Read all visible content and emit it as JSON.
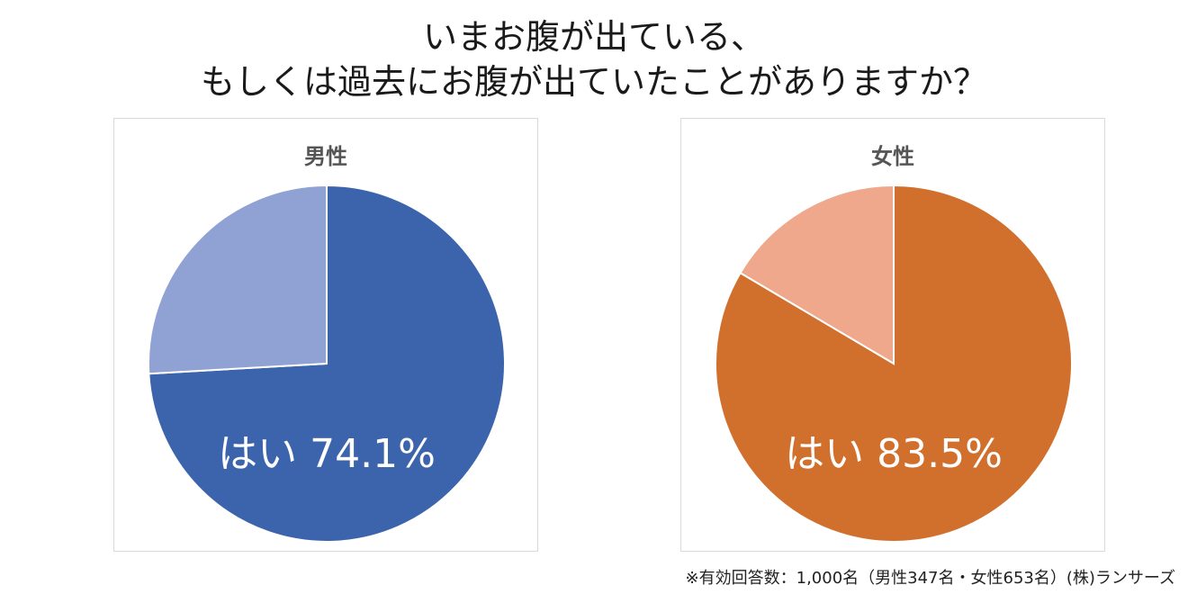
{
  "title": {
    "line1": "いまお腹が出ている、",
    "line2": "もしくは過去にお腹が出ていたことがありますか？"
  },
  "chart_data": [
    {
      "type": "pie",
      "title": "男性",
      "slices": [
        {
          "name": "はい",
          "value": 74.1,
          "color": "#3c64ac"
        },
        {
          "name": "",
          "value": 25.9,
          "color": "#8fa2d3"
        }
      ],
      "data_label": "はい 74.1%"
    },
    {
      "type": "pie",
      "title": "女性",
      "slices": [
        {
          "name": "はい",
          "value": 83.5,
          "color": "#d16f2d"
        },
        {
          "name": "",
          "value": 16.5,
          "color": "#efa88c"
        }
      ],
      "data_label": "はい 83.5%"
    }
  ],
  "footnote": "※有効回答数：1,000名（男性347名・女性653名）(株)ランサーズ"
}
